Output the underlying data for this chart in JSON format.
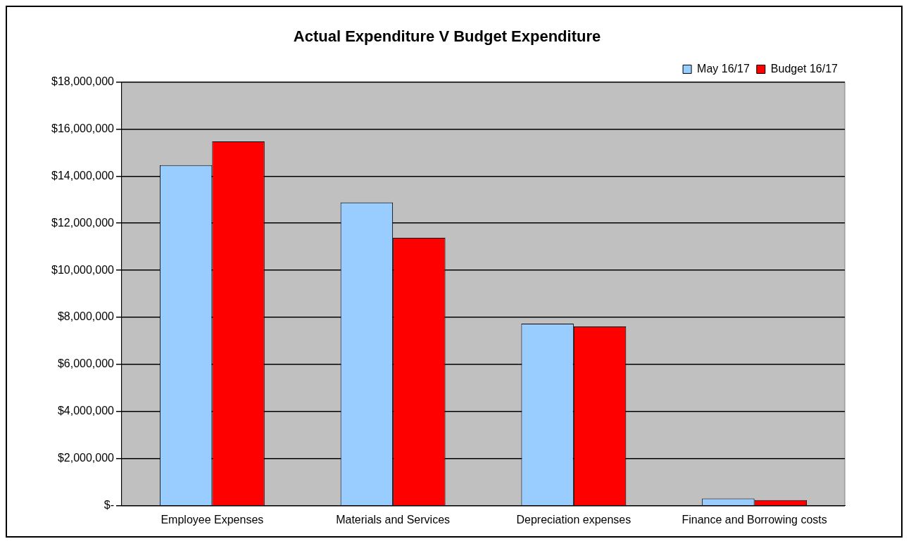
{
  "chart_data": {
    "type": "bar",
    "title": "Actual Expenditure V Budget Expenditure",
    "categories": [
      "Employee Expenses",
      "Materials and Services",
      "Depreciation expenses",
      "Finance and Borrowing costs"
    ],
    "series": [
      {
        "name": "May 16/17",
        "color": "#99ccff",
        "values": [
          14460000,
          12880000,
          7730000,
          310000
        ]
      },
      {
        "name": "Budget 16/17",
        "color": "#ff0000",
        "values": [
          15470000,
          11380000,
          7610000,
          240000
        ]
      }
    ],
    "ylim": [
      0,
      18000000
    ],
    "yticks": [
      {
        "value": 0,
        "label": "$-"
      },
      {
        "value": 2000000,
        "label": "$2,000,000"
      },
      {
        "value": 4000000,
        "label": "$4,000,000"
      },
      {
        "value": 6000000,
        "label": "$6,000,000"
      },
      {
        "value": 8000000,
        "label": "$8,000,000"
      },
      {
        "value": 10000000,
        "label": "$10,000,000"
      },
      {
        "value": 12000000,
        "label": "$12,000,000"
      },
      {
        "value": 14000000,
        "label": "$14,000,000"
      },
      {
        "value": 16000000,
        "label": "$16,000,000"
      },
      {
        "value": 18000000,
        "label": "$18,000,000"
      }
    ],
    "grid": "y",
    "legend": "top right"
  }
}
